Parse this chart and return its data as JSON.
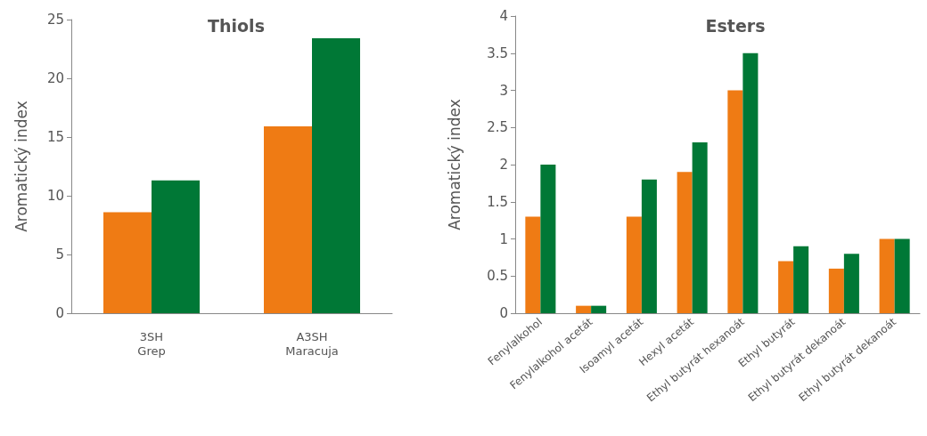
{
  "chart_data": [
    {
      "type": "bar",
      "title": "Thiols",
      "ylabel": "Aromatický index",
      "categories": [
        "3SH\nGrep",
        "A3SH\nMaracuja"
      ],
      "series": [
        {
          "color": "#ef7b14",
          "values": [
            8.6,
            15.9
          ]
        },
        {
          "color": "#007836",
          "values": [
            11.3,
            23.4
          ]
        }
      ],
      "ylim": [
        0,
        25
      ],
      "yticks": [
        0,
        5,
        10,
        15,
        20,
        25
      ],
      "grid": false
    },
    {
      "type": "bar",
      "title": "Esters",
      "ylabel": "Aromatický index",
      "categories": [
        "Fenylalkohol",
        "Fenylalkohol acetát",
        "Isoamyl acetát",
        "Hexyl acetát",
        "Ethyl butyrát hexanoát",
        "Ethyl butyrát",
        "Ethyl butyrát dekanoát",
        "Ethyl butyrát dekanoát"
      ],
      "series": [
        {
          "color": "#ef7b14",
          "values": [
            1.3,
            0.1,
            1.3,
            1.9,
            3.0,
            0.7,
            0.6,
            1.0
          ]
        },
        {
          "color": "#007836",
          "values": [
            2.0,
            0.1,
            1.8,
            2.3,
            3.5,
            0.9,
            0.8,
            1.0
          ]
        }
      ],
      "ylim": [
        0,
        4
      ],
      "yticks": [
        0,
        0.5,
        1,
        1.5,
        2,
        2.5,
        3,
        3.5,
        4
      ],
      "grid": false
    }
  ]
}
